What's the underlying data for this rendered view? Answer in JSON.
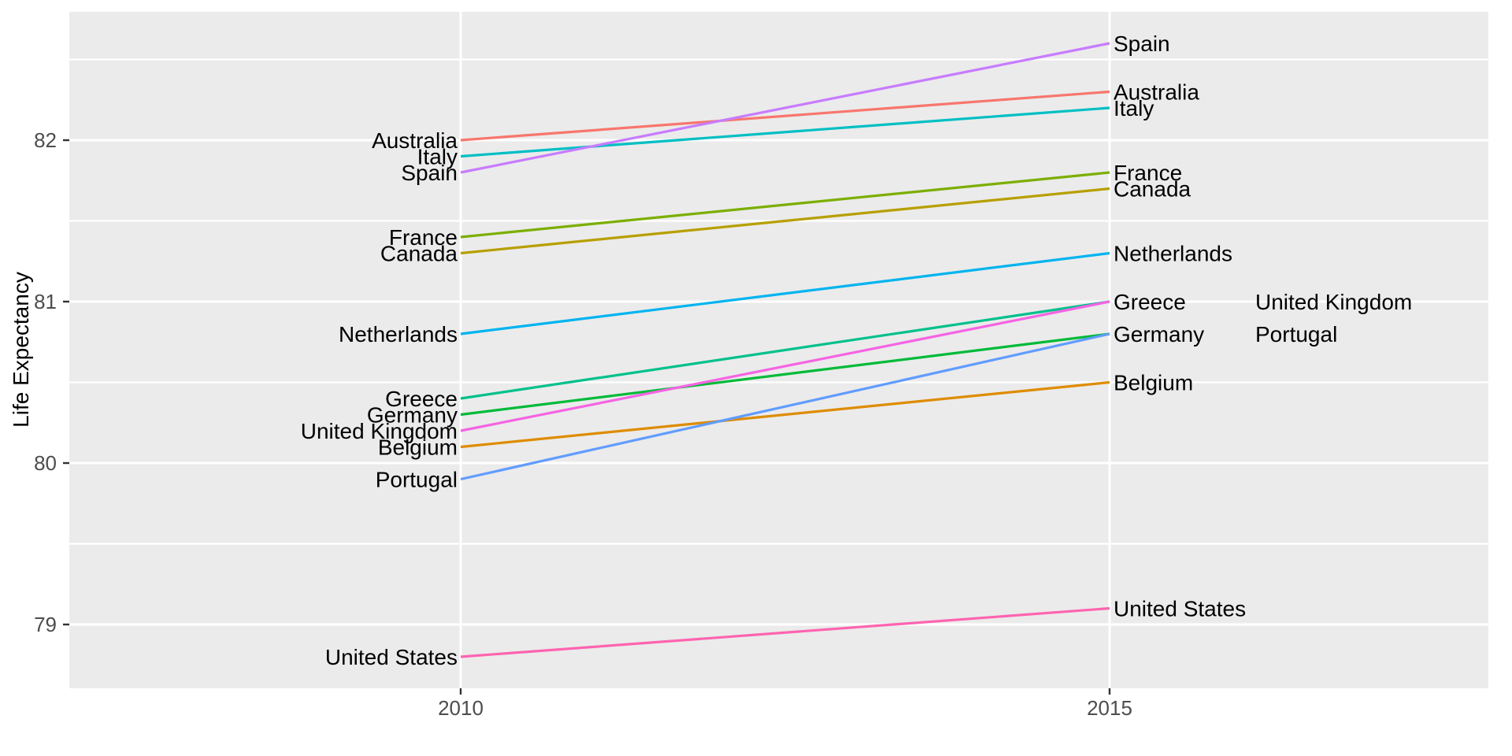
{
  "chart_data": {
    "type": "line",
    "variant": "slopegraph",
    "title": "",
    "xlabel": "",
    "ylabel": "Life Expectancy",
    "x_categories": [
      "2010",
      "2015"
    ],
    "ylim": [
      78.6,
      82.8
    ],
    "y_major_ticks": [
      79,
      80,
      81,
      82
    ],
    "y_minor_gridlines": [
      79.5,
      80.5,
      81.5,
      82.5
    ],
    "grid": "white gridlines on gray panel",
    "legend": "none (lines labeled directly at both ends)",
    "panel_background": "#EBEBEB",
    "gridline_color": "#FFFFFF",
    "axis_text_color": "#4D4D4D",
    "label_text_color": "#000000",
    "series": [
      {
        "name": "Australia",
        "color": "#F8766D",
        "values": [
          82.0,
          82.3
        ]
      },
      {
        "name": "Belgium",
        "color": "#DE8C00",
        "values": [
          80.1,
          80.5
        ]
      },
      {
        "name": "Canada",
        "color": "#B79F00",
        "values": [
          81.3,
          81.7
        ]
      },
      {
        "name": "France",
        "color": "#7CAE00",
        "values": [
          81.4,
          81.8
        ]
      },
      {
        "name": "Germany",
        "color": "#00BA38",
        "values": [
          80.3,
          80.8
        ]
      },
      {
        "name": "Greece",
        "color": "#00C08B",
        "values": [
          80.4,
          81.0
        ]
      },
      {
        "name": "Italy",
        "color": "#00BFC4",
        "values": [
          81.9,
          82.2
        ]
      },
      {
        "name": "Netherlands",
        "color": "#00B4F0",
        "values": [
          80.8,
          81.3
        ]
      },
      {
        "name": "Portugal",
        "color": "#619CFF",
        "values": [
          79.9,
          80.8
        ],
        "label_right_dx": 180
      },
      {
        "name": "Spain",
        "color": "#C77CFF",
        "values": [
          81.8,
          82.6
        ]
      },
      {
        "name": "United Kingdom",
        "color": "#F564E3",
        "values": [
          80.2,
          81.0
        ],
        "label_right_dx": 180
      },
      {
        "name": "United States",
        "color": "#FF64B0",
        "values": [
          78.8,
          79.1
        ]
      }
    ]
  }
}
